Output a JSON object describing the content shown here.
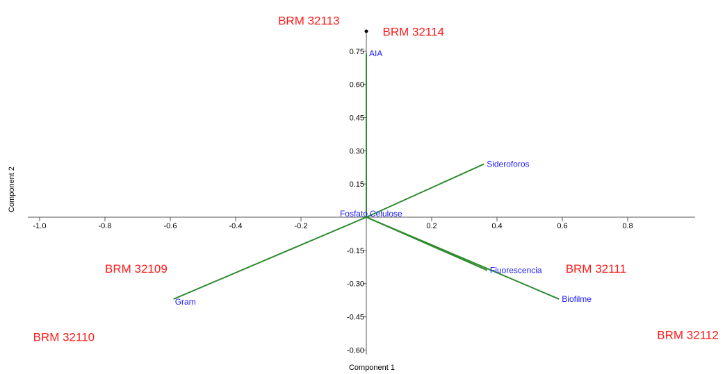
{
  "chart_data": {
    "type": "biplot",
    "xlabel": "Component 1",
    "ylabel": "Component 2",
    "xlim": [
      -1.0,
      1.0
    ],
    "ylim": [
      -0.62,
      0.85
    ],
    "x_ticks": [
      "-1.0",
      "-0.8",
      "-0.6",
      "-0.4",
      "-0.2",
      "0.2",
      "0.4",
      "0.6",
      "0.8"
    ],
    "y_ticks": [
      "0.75",
      "0.60",
      "0.45",
      "0.30",
      "0.15",
      "-0.15",
      "-0.30",
      "-0.45",
      "-0.60"
    ],
    "line_color": "#2e8b2e",
    "label_color": "#1a1aff",
    "strain_color": "#ff1a1a",
    "vectors": [
      {
        "label": "AIA",
        "x": 0.0,
        "y": 0.74
      },
      {
        "label": "Sideroforos",
        "x": 0.36,
        "y": 0.24
      },
      {
        "label": "Fosfato",
        "x": -0.01,
        "y": 0.0
      },
      {
        "label": "Celulose",
        "x": 0.005,
        "y": 0.0
      },
      {
        "label": "Fluorescencia",
        "x": 0.37,
        "y": -0.24
      },
      {
        "label": "Biofilme",
        "x": 0.59,
        "y": -0.37
      },
      {
        "label": "Gram",
        "x": -0.59,
        "y": -0.37
      }
    ],
    "points": [
      {
        "x": 0.0,
        "y": 0.84
      }
    ],
    "annotations": [
      {
        "text": "BRM 32113",
        "x": -0.27,
        "y": 0.87
      },
      {
        "text": "BRM 32114",
        "x": 0.05,
        "y": 0.82
      },
      {
        "text": "BRM 32109",
        "x": -0.8,
        "y": -0.25
      },
      {
        "text": "BRM 32111",
        "x": 0.61,
        "y": -0.25
      },
      {
        "text": "BRM 32110",
        "x": -1.02,
        "y": -0.56
      },
      {
        "text": "BRM 32112",
        "x": 0.89,
        "y": -0.55
      }
    ]
  }
}
